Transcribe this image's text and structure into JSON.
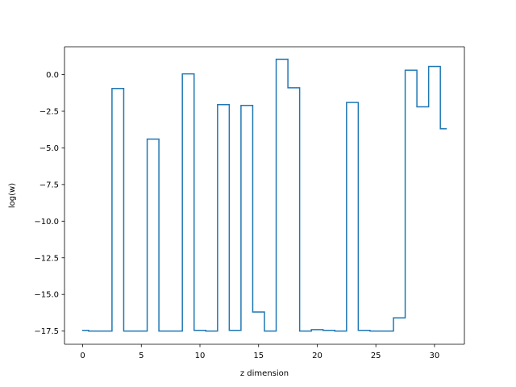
{
  "chart_data": {
    "type": "line",
    "drawstyle": "steps-mid",
    "title": "",
    "xlabel": "z dimension",
    "ylabel": "log(w)",
    "xlim": [
      -1.55,
      32.55
    ],
    "ylim": [
      -18.4,
      1.9
    ],
    "grid": false,
    "legend": "none",
    "x_ticks": [
      0,
      5,
      10,
      15,
      20,
      25,
      30
    ],
    "x_tick_labels": [
      "0",
      "5",
      "10",
      "15",
      "20",
      "25",
      "30"
    ],
    "y_ticks": [
      0.0,
      -2.5,
      -5.0,
      -7.5,
      -10.0,
      -12.5,
      -15.0,
      -17.5
    ],
    "y_tick_labels": [
      "0.0",
      "−2.5",
      "−5.0",
      "−7.5",
      "−10.0",
      "−12.5",
      "−15.0",
      "−17.5"
    ],
    "series": [
      {
        "name": "",
        "color": "#1f77b4",
        "x": [
          0,
          1,
          2,
          3,
          4,
          5,
          6,
          7,
          8,
          9,
          10,
          11,
          12,
          13,
          14,
          15,
          16,
          17,
          18,
          19,
          20,
          21,
          22,
          23,
          24,
          25,
          26,
          27,
          28,
          29,
          30,
          31
        ],
        "y": [
          -17.45,
          -17.5,
          -17.5,
          -0.95,
          -17.5,
          -17.5,
          -4.4,
          -17.5,
          -17.5,
          0.05,
          -17.45,
          -17.5,
          -2.05,
          -17.45,
          -2.1,
          -16.2,
          -17.5,
          1.05,
          -0.9,
          -17.5,
          -17.4,
          -17.45,
          -17.5,
          -1.9,
          -17.45,
          -17.5,
          -17.5,
          -16.6,
          0.3,
          -2.2,
          0.55,
          -3.7
        ]
      }
    ]
  }
}
